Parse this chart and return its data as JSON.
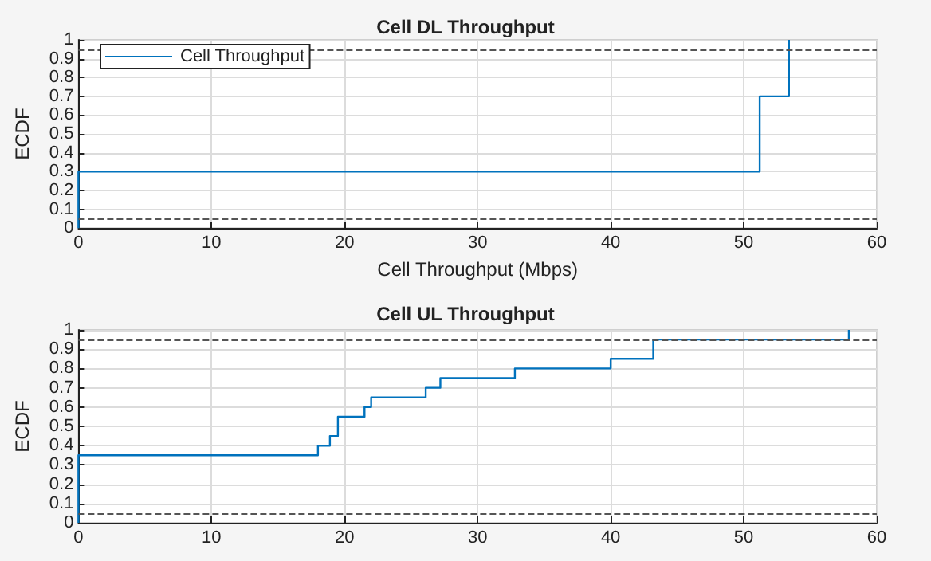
{
  "chart_data": [
    {
      "type": "step",
      "title": "Cell DL Throughput",
      "xlabel": "Cell Throughput (Mbps)",
      "ylabel": "ECDF",
      "series": [
        {
          "name": "Cell Throughput",
          "color": "#0072bd",
          "x": [
            0,
            0,
            51.2,
            53.4
          ],
          "values": [
            0,
            0.3,
            0.7,
            1
          ]
        }
      ],
      "xlim": [
        0,
        60
      ],
      "xticks": [
        0,
        10,
        20,
        30,
        40,
        50,
        60
      ],
      "ylim": [
        0,
        1
      ],
      "yticks": [
        0,
        0.1,
        0.2,
        0.3,
        0.4,
        0.5,
        0.6,
        0.7,
        0.8,
        0.9,
        1
      ],
      "ref_lines": [
        {
          "axis": "y",
          "value": 0.05,
          "color": "#555555",
          "line_style": "dashed"
        },
        {
          "axis": "y",
          "value": 0.95,
          "color": "#555555",
          "line_style": "dashed"
        }
      ],
      "grid": true,
      "legend": "top left"
    },
    {
      "type": "step",
      "title": "Cell UL Throughput",
      "ylabel": "ECDF",
      "series": [
        {
          "color": "#0072bd",
          "x": [
            0,
            0,
            18,
            18.9,
            19.5,
            21.5,
            22,
            26.1,
            27.2,
            32.8,
            40,
            43.2,
            57.9
          ],
          "values": [
            0,
            0.35,
            0.4,
            0.45,
            0.55,
            0.6,
            0.65,
            0.7,
            0.75,
            0.8,
            0.85,
            0.95,
            1
          ]
        }
      ],
      "xlim": [
        0,
        60
      ],
      "xticks": [
        0,
        10,
        20,
        30,
        40,
        50,
        60
      ],
      "ylim": [
        0,
        1
      ],
      "yticks": [
        0,
        0.1,
        0.2,
        0.3,
        0.4,
        0.5,
        0.6,
        0.7,
        0.8,
        0.9,
        1
      ],
      "ref_lines": [
        {
          "axis": "y",
          "value": 0.05,
          "color": "#555555",
          "line_style": "dashed"
        },
        {
          "axis": "y",
          "value": 0.95,
          "color": "#555555",
          "line_style": "dashed"
        }
      ],
      "grid": true,
      "legend": false
    }
  ]
}
